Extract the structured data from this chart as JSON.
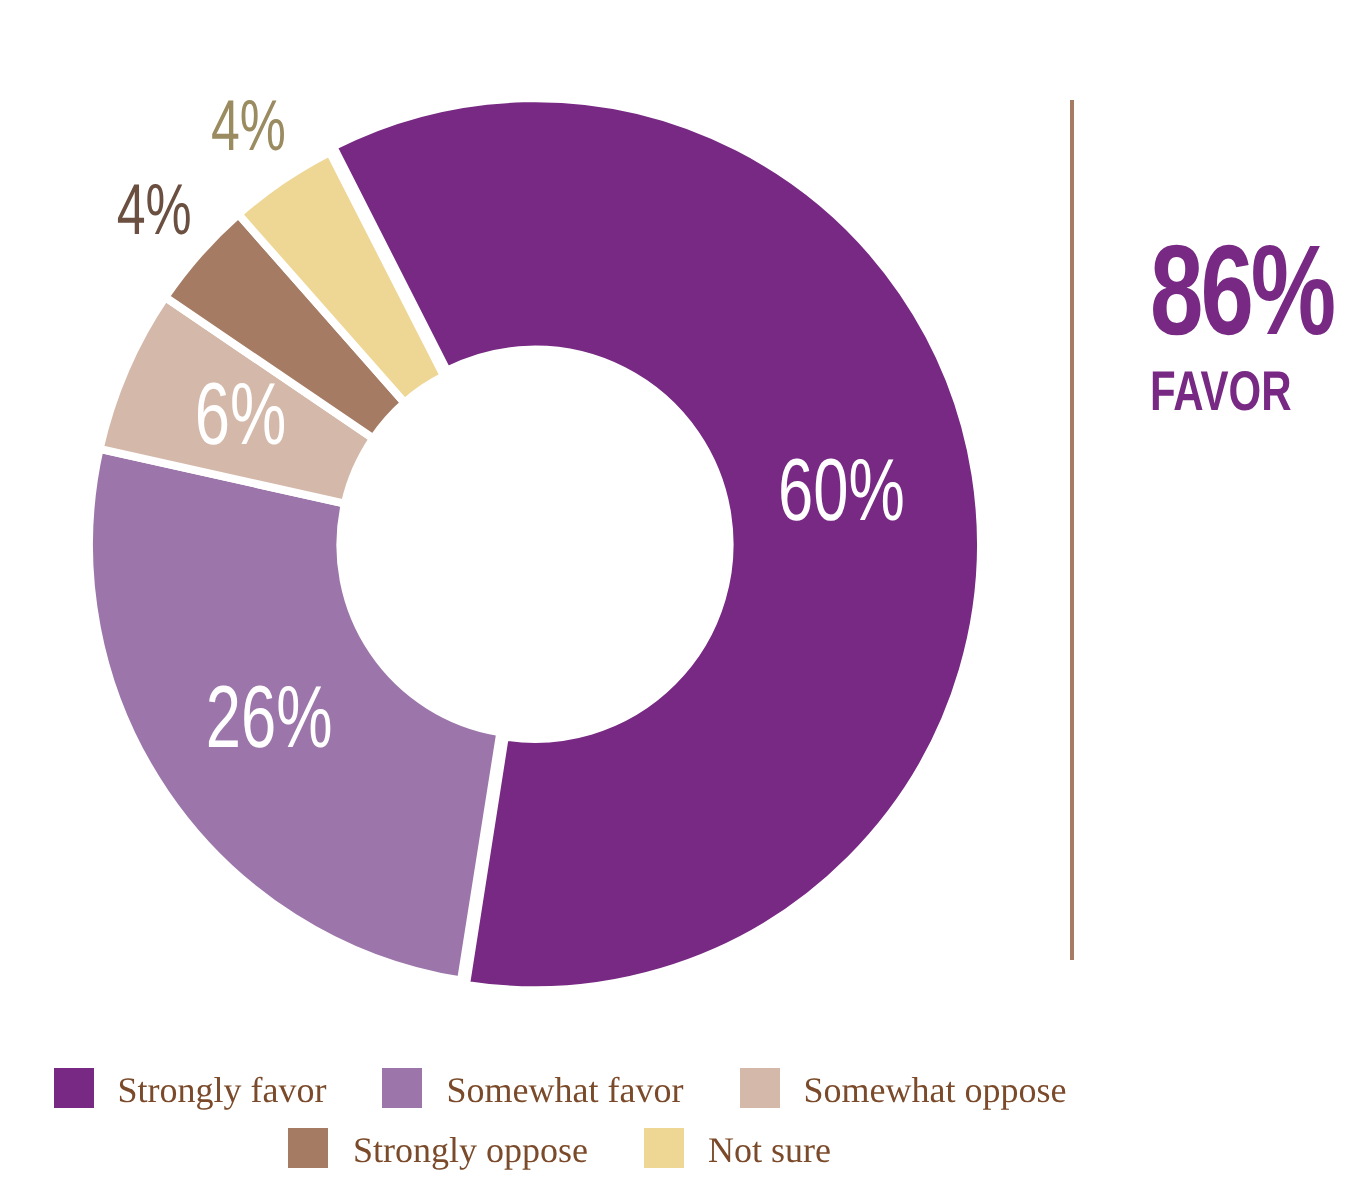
{
  "chart_data": {
    "type": "donut",
    "categories": [
      "Strongly favor",
      "Somewhat favor",
      "Somewhat oppose",
      "Strongly oppose",
      "Not sure"
    ],
    "values": [
      60,
      26,
      6,
      4,
      4
    ],
    "colors": [
      "#772983",
      "#9c76aa",
      "#d4b9aa",
      "#a57b64",
      "#eed694"
    ],
    "value_labels": [
      "60%",
      "26%",
      "6%",
      "4%",
      "4%"
    ],
    "legend": "bottom",
    "annotations": [
      "86%",
      "FAVOR"
    ]
  }
}
